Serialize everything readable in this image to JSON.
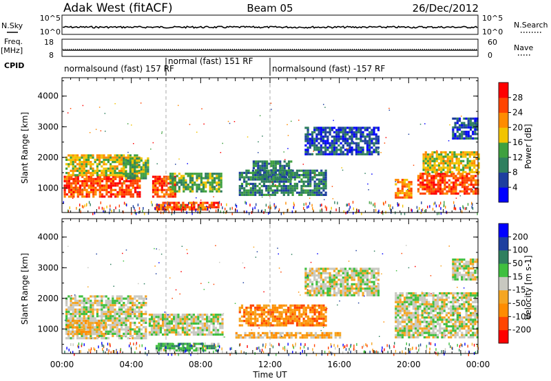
{
  "header": {
    "station": "Adak West (fitACF)",
    "beam": "Beam 05",
    "date": "26/Dec/2012"
  },
  "top_strips": {
    "nsky_label": "N.Sky",
    "nsky_ticks": [
      "10^5",
      "10^0"
    ],
    "nsearch_label": "N.Search",
    "freq_label": "Freq.",
    "freq_unit": "[MHz]",
    "freq_ticks": [
      "18",
      "8"
    ],
    "nave_label": "Nave",
    "nave_ticks": [
      "60",
      "0"
    ],
    "cpid_label": "CPID",
    "cpid_segments": [
      {
        "label": "normalsound (fast) 157 RF",
        "start": 0,
        "end": 6
      },
      {
        "label": "normal (fast) 151 RF",
        "start": 6,
        "end": 12
      },
      {
        "label": "normalsound (fast) -157 RF",
        "start": 12,
        "end": 24
      }
    ]
  },
  "chart_data": [
    {
      "type": "heatmap",
      "panel": "power",
      "ylabel": "Slant Range [km]",
      "xlabel": "",
      "xlim": [
        0,
        24
      ],
      "ylim": [
        200,
        4600
      ],
      "yticks": [
        1000,
        2000,
        3000,
        4000
      ],
      "colorbar_label": "Power [dB]",
      "colorbar_ticks": [
        "28",
        "24",
        "20",
        "16",
        "12",
        "8",
        "4"
      ],
      "colors": [
        "#0000ff",
        "#1e3f9f",
        "#2f7f5f",
        "#3fa03f",
        "#f2c400",
        "#ff8c00",
        "#ff4500",
        "#ff0000"
      ],
      "regions": [
        {
          "t0": 0.1,
          "t1": 4.5,
          "r0": 700,
          "r1": 1400,
          "level": 6
        },
        {
          "t0": 0.2,
          "t1": 4.5,
          "r0": 1400,
          "r1": 2100,
          "level": 4
        },
        {
          "t0": 3.5,
          "t1": 5.0,
          "r0": 1300,
          "r1": 2000,
          "level": 3
        },
        {
          "t0": 5.2,
          "t1": 6.5,
          "r0": 700,
          "r1": 1400,
          "level": 6
        },
        {
          "t0": 6.2,
          "t1": 9.2,
          "r0": 900,
          "r1": 1500,
          "level": 3
        },
        {
          "t0": 5.4,
          "t1": 9.0,
          "r0": 300,
          "r1": 550,
          "level": 6
        },
        {
          "t0": 10.2,
          "t1": 15.2,
          "r0": 800,
          "r1": 1600,
          "level": 2
        },
        {
          "t0": 11.0,
          "t1": 13.2,
          "r0": 1300,
          "r1": 1900,
          "level": 2
        },
        {
          "t0": 14.0,
          "t1": 18.2,
          "r0": 2100,
          "r1": 3000,
          "level": 1
        },
        {
          "t0": 19.2,
          "t1": 20.2,
          "r0": 700,
          "r1": 1300,
          "level": 5
        },
        {
          "t0": 20.5,
          "t1": 24.0,
          "r0": 800,
          "r1": 1500,
          "level": 6
        },
        {
          "t0": 20.8,
          "t1": 24.0,
          "r0": 1500,
          "r1": 2200,
          "level": 4
        },
        {
          "t0": 22.5,
          "t1": 24.0,
          "r0": 2600,
          "r1": 3300,
          "level": 1
        }
      ]
    },
    {
      "type": "heatmap",
      "panel": "velocity",
      "ylabel": "Slant Range [km]",
      "xlabel": "Time UT",
      "xlim": [
        0,
        24
      ],
      "ylim": [
        200,
        4600
      ],
      "yticks": [
        1000,
        2000,
        3000,
        4000
      ],
      "xticks": [
        "00:00",
        "04:00",
        "08:00",
        "12:00",
        "16:00",
        "20:00",
        "00:00"
      ],
      "colorbar_label": "Velocity [m s-1]",
      "colorbar_ticks": [
        "200",
        "100",
        "50",
        "15",
        "-15",
        "-50",
        "-100",
        "-200"
      ],
      "colors": [
        "#ff0000",
        "#ff4500",
        "#ff8c00",
        "#f5a623",
        "#c8c8c0",
        "#3fbf3f",
        "#2f7f5f",
        "#1e3f9f",
        "#0000ff"
      ],
      "regions": [
        {
          "t0": 0.2,
          "t1": 4.8,
          "r0": 700,
          "r1": 2100,
          "level": 4
        },
        {
          "t0": 0.3,
          "t1": 2.5,
          "r0": 800,
          "r1": 1300,
          "level": 3
        },
        {
          "t0": 5.0,
          "t1": 9.2,
          "r0": 800,
          "r1": 1500,
          "level": 4
        },
        {
          "t0": 5.4,
          "t1": 9.0,
          "r0": 300,
          "r1": 550,
          "level": 5
        },
        {
          "t0": 10.2,
          "t1": 15.2,
          "r0": 1100,
          "r1": 1800,
          "level": 2
        },
        {
          "t0": 10.0,
          "t1": 16.0,
          "r0": 700,
          "r1": 900,
          "level": 3
        },
        {
          "t0": 14.0,
          "t1": 18.2,
          "r0": 2100,
          "r1": 3000,
          "level": 4
        },
        {
          "t0": 19.2,
          "t1": 24.0,
          "r0": 700,
          "r1": 2200,
          "level": 4
        },
        {
          "t0": 22.5,
          "t1": 24.0,
          "r0": 2600,
          "r1": 3300,
          "level": 4
        }
      ]
    }
  ]
}
